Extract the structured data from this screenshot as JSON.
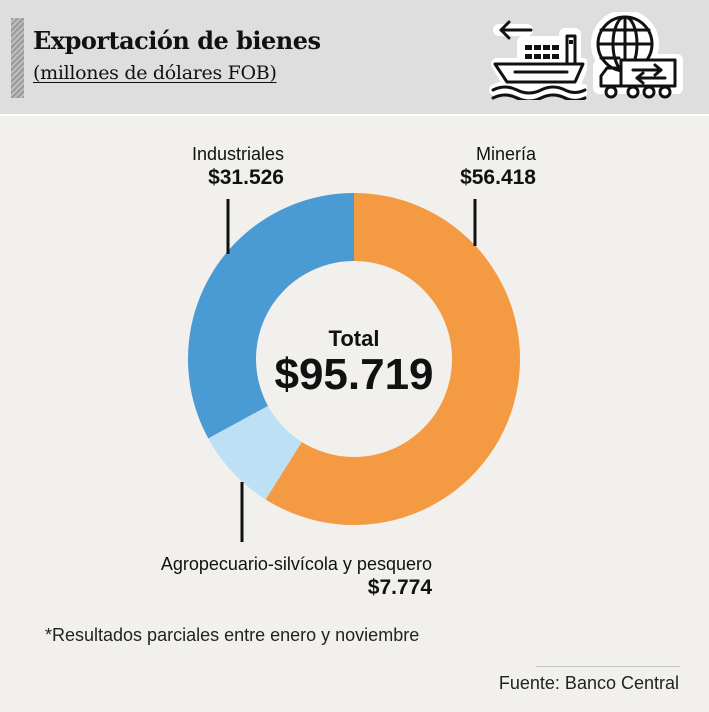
{
  "header": {
    "title": "Exportación de bienes",
    "subtitle": "(millones de dólares FOB)",
    "icons": [
      "cargo-ship-icon",
      "globe-truck-icon"
    ]
  },
  "chart_data": {
    "type": "pie",
    "donut": true,
    "center_label": "Total",
    "center_value": "$95.719",
    "total": 95719,
    "slices": [
      {
        "label": "Minería",
        "value": 56418,
        "value_text": "$56.418",
        "color": "#f39a43"
      },
      {
        "label": "Agropecuario-silvícola y pesquero",
        "value": 7774,
        "value_text": "$7.774",
        "color": "#bde0f5"
      },
      {
        "label": "Industriales",
        "value": 31526,
        "value_text": "$31.526",
        "color": "#4a9ad4"
      }
    ]
  },
  "footnote": "*Resultados parciales entre enero y noviembre",
  "source": "Fuente: Banco Central"
}
